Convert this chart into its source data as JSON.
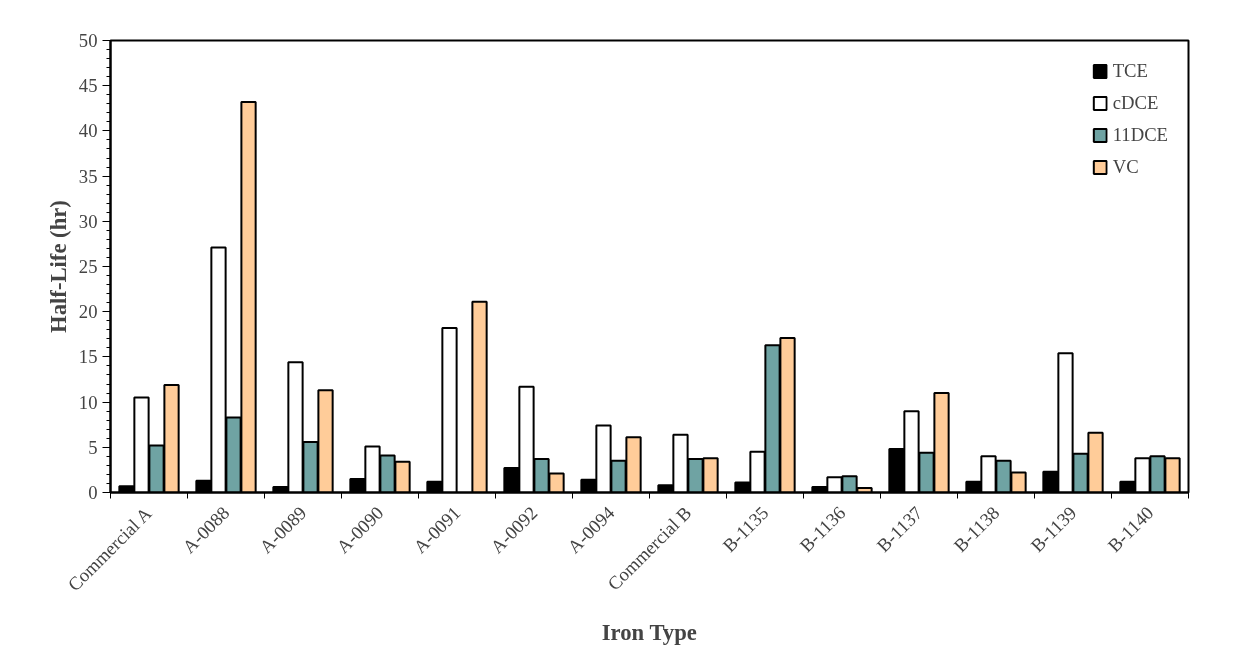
{
  "chart_data": {
    "type": "bar",
    "xlabel": "Iron Type",
    "ylabel": "Half-Life (hr)",
    "categories": [
      "Commercial A",
      "A-0088",
      "A-0089",
      "A-0090",
      "A-0091",
      "A-0092",
      "A-0094",
      "Commercial B",
      "B-1135",
      "B-1136",
      "B-1137",
      "B-1138",
      "B-1139",
      "B-1140"
    ],
    "series": [
      {
        "name": "TCE",
        "color": "#000000",
        "values": [
          0.7,
          1.3,
          0.6,
          1.5,
          1.2,
          2.7,
          1.4,
          0.8,
          1.1,
          0.6,
          4.8,
          1.2,
          2.3,
          1.2
        ]
      },
      {
        "name": "cDCE",
        "color": "#ffffff",
        "values": [
          10.5,
          27.1,
          14.4,
          5.1,
          18.2,
          11.7,
          7.4,
          6.4,
          4.5,
          1.7,
          9.0,
          4.0,
          15.4,
          3.8
        ]
      },
      {
        "name": "11DCE",
        "color": "#6fa3a3",
        "values": [
          5.2,
          8.3,
          5.6,
          4.1,
          null,
          3.7,
          3.5,
          3.7,
          16.3,
          1.8,
          4.4,
          3.5,
          4.3,
          4.0
        ]
      },
      {
        "name": "VC",
        "color": "#ffcc99",
        "values": [
          11.9,
          43.2,
          11.3,
          3.4,
          21.1,
          2.1,
          6.1,
          3.8,
          17.1,
          0.5,
          11.0,
          2.2,
          6.6,
          3.8
        ]
      }
    ],
    "ylim": [
      0,
      50
    ],
    "yticks": [
      0,
      5,
      10,
      15,
      20,
      25,
      30,
      35,
      40,
      45,
      50
    ],
    "grid": false,
    "legend": "top right"
  }
}
